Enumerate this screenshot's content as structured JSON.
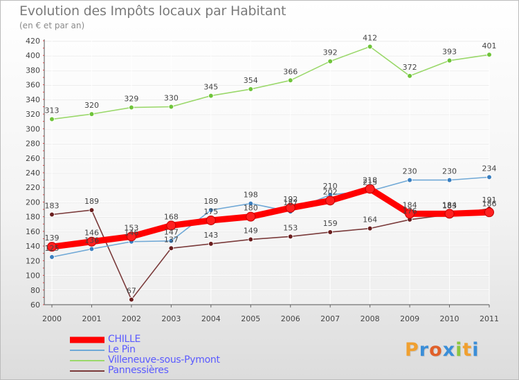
{
  "header": {
    "title": "Evolution des Impôts locaux par Habitant",
    "subtitle": "(en € et par an)"
  },
  "logo": {
    "text": "Proxiti",
    "letters": [
      "P",
      "r",
      "o",
      "x",
      "i",
      "t",
      "i"
    ],
    "letter_colors": [
      "#f0a030",
      "#3a8ed8",
      "#e0602a",
      "#3a8ed8",
      "#8cc63f",
      "#f0a030",
      "#3a8ed8"
    ]
  },
  "chart_data": {
    "type": "line",
    "title": "Evolution des Impôts locaux par Habitant",
    "subtitle": "(en € et par an)",
    "xlabel": "",
    "ylabel": "",
    "x": [
      "2000",
      "2001",
      "2002",
      "2003",
      "2004",
      "2005",
      "2006",
      "2007",
      "2008",
      "2009",
      "2010",
      "2011"
    ],
    "ylim": [
      60,
      420
    ],
    "yticks": [
      60,
      80,
      100,
      120,
      140,
      160,
      180,
      200,
      220,
      240,
      260,
      280,
      300,
      320,
      340,
      360,
      380,
      400,
      420
    ],
    "grid": true,
    "legend_position": "bottom-left",
    "series": [
      {
        "name": "CHILLE",
        "color": "#ff0000",
        "marker_color": "#ff2020",
        "emphasized": true,
        "values": [
          139,
          146,
          153,
          168,
          175,
          180,
          192,
          202,
          218,
          184,
          184,
          186
        ],
        "labels": [
          "139",
          "146",
          "153",
          "168",
          "175",
          "180",
          "192",
          "202",
          "218",
          "184",
          "184",
          "186"
        ]
      },
      {
        "name": "Le Pin",
        "color": "#6fa8d6",
        "marker_color": "#3a7fc0",
        "values": [
          125,
          136,
          146,
          147,
          189,
          198,
          187,
          210,
          215,
          230,
          230,
          234
        ],
        "labels": [
          "125",
          "136",
          "146",
          "147",
          "189",
          "198",
          "187",
          "210",
          "215",
          "230",
          "230",
          "234"
        ]
      },
      {
        "name": "Villeneuve-sous-Pymont",
        "color": "#9ad86a",
        "marker_color": "#6fc43a",
        "values": [
          313,
          320,
          329,
          330,
          345,
          354,
          366,
          392,
          412,
          372,
          393,
          401
        ],
        "labels": [
          "313",
          "320",
          "329",
          "330",
          "345",
          "354",
          "366",
          "392",
          "412",
          "372",
          "393",
          "401"
        ]
      },
      {
        "name": "Pannessières",
        "color": "#7a3a3a",
        "marker_color": "#6a1e1e",
        "values": [
          183,
          189,
          67,
          137,
          143,
          149,
          153,
          159,
          164,
          176,
          183,
          191
        ],
        "labels": [
          "183",
          "189",
          "67",
          "137",
          "143",
          "149",
          "153",
          "159",
          "164",
          "176",
          "183",
          "191"
        ]
      }
    ]
  }
}
